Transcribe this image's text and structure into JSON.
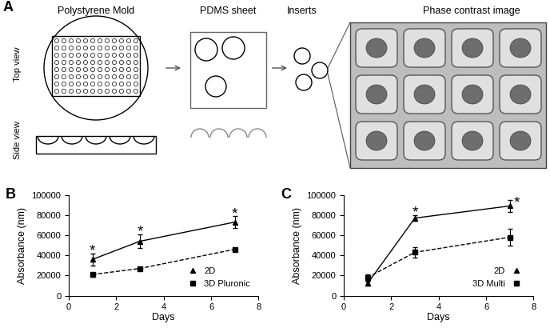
{
  "diagram": {
    "panel_label": "A",
    "steps": [
      {
        "title": "Polystyrene Mold"
      },
      {
        "title": "PDMS sheet"
      },
      {
        "title": "Inserts"
      },
      {
        "title": "Phase contrast image"
      }
    ],
    "views": [
      "Top view",
      "Side view"
    ]
  },
  "chart_data": [
    {
      "type": "line",
      "panel_label": "B",
      "x": [
        1,
        3,
        7
      ],
      "series": [
        {
          "name": "2D",
          "color": "#000000",
          "marker": "triangle",
          "line_style": "solid",
          "values": [
            36000,
            54000,
            73000
          ],
          "errors": [
            6000,
            7000,
            6000
          ]
        },
        {
          "name": "3D Pluronic",
          "color": "#000000",
          "marker": "square",
          "line_style": "dashed",
          "values": [
            21000,
            27000,
            46000
          ],
          "errors": [
            2000,
            1000,
            1000
          ]
        }
      ],
      "x_label": "Days",
      "y_label": "Absorbance (nm)",
      "xlim": [
        0,
        8
      ],
      "xticks": [
        0,
        2,
        4,
        6,
        8
      ],
      "ylim": [
        0,
        100000
      ],
      "yticks": [
        0,
        20000,
        40000,
        60000,
        80000,
        100000
      ],
      "legend": "lower right",
      "annotations": [
        {
          "text": "*",
          "x": 1,
          "y": 44000
        },
        {
          "text": "*",
          "x": 3,
          "y": 63000
        },
        {
          "text": "*",
          "x": 7,
          "y": 81000
        }
      ]
    },
    {
      "type": "line",
      "panel_label": "C",
      "x": [
        1,
        3,
        7
      ],
      "series": [
        {
          "name": "2D",
          "color": "#000000",
          "marker": "triangle",
          "line_style": "solid",
          "values": [
            12000,
            77000,
            89000
          ],
          "errors": [
            2000,
            3000,
            6000
          ]
        },
        {
          "name": "3D Multi",
          "color": "#000000",
          "marker": "square",
          "line_style": "dashed",
          "values": [
            18000,
            43000,
            58000
          ],
          "errors": [
            3000,
            5000,
            8000
          ]
        }
      ],
      "x_label": "Days",
      "y_label": "Absorbance (nm)",
      "xlim": [
        0,
        8
      ],
      "xticks": [
        0,
        2,
        4,
        6,
        8
      ],
      "ylim": [
        0,
        100000
      ],
      "yticks": [
        0,
        20000,
        40000,
        60000,
        80000,
        100000
      ],
      "legend": "lower right",
      "annotations": [
        {
          "text": "*",
          "x": 3,
          "y": 82000
        },
        {
          "text": "*",
          "x": 7.3,
          "y": 92000
        }
      ]
    }
  ]
}
